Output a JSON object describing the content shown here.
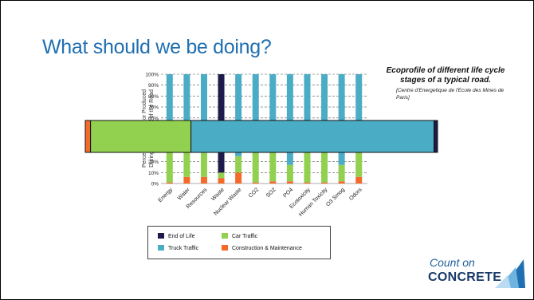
{
  "slide": {
    "title": "What should we be doing?",
    "caption_main": "Ecoprofile of different life cycle stages of a typical road.",
    "caption_sub": "[Centre d'Energetique de l'Ecole des Mines de Paris]"
  },
  "colors": {
    "title": "#1f6fb2",
    "end_of_life": "#1e1b4b",
    "car_traffic": "#92d050",
    "truck_traffic": "#4bacc6",
    "construction": "#f46a2b"
  },
  "chart_data": {
    "type": "bar",
    "stacked": true,
    "orientation": "vertical",
    "ylabel": "Percent of ... Used or Produced During Each ... Life of the Road",
    "y_ticks_visible": [
      "0%",
      "10%",
      "20%",
      "60%",
      "70%",
      "80%",
      "90%",
      "100%"
    ],
    "ylim": [
      0,
      100
    ],
    "categories": [
      "Energy",
      "Water",
      "Resources",
      "Waste",
      "Nuclear Waste",
      "CO2",
      "SO2",
      "PO4",
      "Ecotoxicity",
      "Human Toxicity",
      "O3 Smog",
      "Odors"
    ],
    "series": [
      {
        "name": "Construction & Maintenance",
        "values": [
          1,
          6,
          6,
          5,
          10,
          1,
          2,
          2,
          1,
          1,
          2,
          6
        ]
      },
      {
        "name": "Car Traffic",
        "values": [
          32,
          28,
          22,
          5,
          15,
          32,
          28,
          15,
          32,
          32,
          15,
          28
        ]
      },
      {
        "name": "Truck Traffic",
        "values": [
          67,
          66,
          72,
          0,
          75,
          67,
          70,
          83,
          67,
          67,
          83,
          66
        ]
      },
      {
        "name": "End of Life",
        "values": [
          0,
          0,
          0,
          90,
          0,
          0,
          0,
          0,
          0,
          0,
          0,
          0
        ]
      }
    ],
    "overlay_bar": {
      "segments": [
        {
          "name": "Construction & Maintenance",
          "value": 1.5
        },
        {
          "name": "Car Traffic",
          "value": 28.5
        },
        {
          "name": "Truck Traffic",
          "value": 69
        },
        {
          "name": "End of Life",
          "value": 1
        }
      ]
    },
    "legend_position": "bottom"
  },
  "legend": [
    {
      "label": "End of Life",
      "color": "#1e1b4b"
    },
    {
      "label": "Car Traffic",
      "color": "#92d050"
    },
    {
      "label": "Truck Traffic",
      "color": "#4bacc6"
    },
    {
      "label": "Construction & Maintenance",
      "color": "#f46a2b"
    }
  ],
  "logo": {
    "line1": "Count on",
    "line2": "CONCRETE"
  }
}
